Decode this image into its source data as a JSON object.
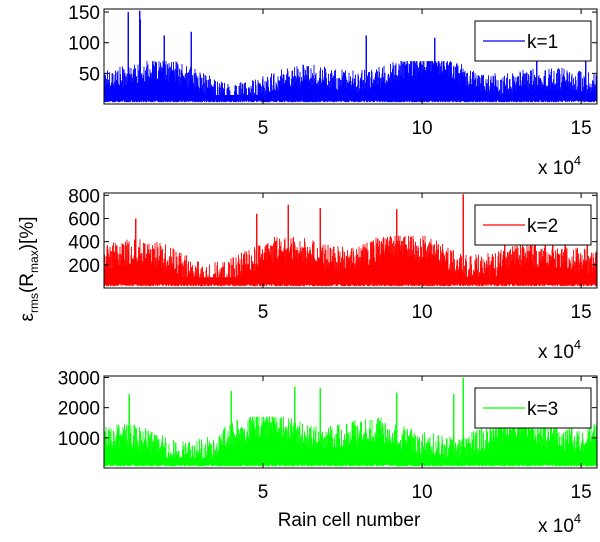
{
  "figure": {
    "ylabel_parts": {
      "epsilon": "ε",
      "rms": "rms",
      "open": "(R",
      "max": "max",
      "close": ")[%]"
    },
    "xlabel": "Rain cell number",
    "x_exponent_base": "x 10",
    "x_exponent_power": "4"
  },
  "chart_data": [
    {
      "type": "line",
      "title": "",
      "xlabel": "",
      "ylabel": "",
      "xlim": [
        0,
        155000
      ],
      "ylim": [
        0,
        155
      ],
      "yticks": [
        50,
        100,
        150
      ],
      "xticks": [
        50000,
        100000,
        150000
      ],
      "xtick_labels": [
        "5",
        "10",
        "15"
      ],
      "ytick_labels": [
        "50",
        "100",
        "150"
      ],
      "x_multiplier_label": "x 10^4",
      "grid": false,
      "legend_position": "top-right",
      "series": [
        {
          "name": "k=1",
          "color": "#0000ff",
          "n_points": 155000,
          "typical_range": [
            5,
            70
          ],
          "peaks": [
            [
              7600,
              150
            ],
            [
              11300,
              152
            ],
            [
              11450,
              138
            ],
            [
              18900,
              112
            ],
            [
              27500,
              118
            ],
            [
              82400,
              112
            ],
            [
              104000,
              108
            ],
            [
              136000,
              110
            ],
            [
              151500,
              118
            ]
          ]
        }
      ]
    },
    {
      "type": "line",
      "title": "",
      "xlabel": "",
      "ylabel": "",
      "xlim": [
        0,
        155000
      ],
      "ylim": [
        0,
        820
      ],
      "yticks": [
        200,
        400,
        600,
        800
      ],
      "xticks": [
        50000,
        100000,
        150000
      ],
      "xtick_labels": [
        "5",
        "10",
        "15"
      ],
      "ytick_labels": [
        "200",
        "400",
        "600",
        "800"
      ],
      "x_multiplier_label": "x 10^4",
      "grid": false,
      "legend_position": "top-right",
      "series": [
        {
          "name": "k=2",
          "color": "#ff0000",
          "n_points": 155000,
          "typical_range": [
            30,
            450
          ],
          "peaks": [
            [
              113000,
              810
            ],
            [
              58000,
              720
            ],
            [
              68000,
              690
            ],
            [
              92000,
              680
            ],
            [
              48000,
              640
            ],
            [
              10000,
              600
            ],
            [
              145000,
              650
            ],
            [
              152000,
              640
            ],
            [
              126000,
              620
            ]
          ]
        }
      ]
    },
    {
      "type": "line",
      "title": "",
      "xlabel": "Rain cell number",
      "ylabel": "",
      "xlim": [
        0,
        155000
      ],
      "ylim": [
        0,
        3050
      ],
      "yticks": [
        1000,
        2000,
        3000
      ],
      "xticks": [
        50000,
        100000,
        150000
      ],
      "xtick_labels": [
        "5",
        "10",
        "15"
      ],
      "ytick_labels": [
        "1000",
        "2000",
        "3000"
      ],
      "x_multiplier_label": "x 10^4",
      "grid": false,
      "legend_position": "top-right",
      "series": [
        {
          "name": "k=3",
          "color": "#00ff00",
          "n_points": 155000,
          "typical_range": [
            100,
            1700
          ],
          "peaks": [
            [
              113000,
              3000
            ],
            [
              60000,
              2700
            ],
            [
              68000,
              2650
            ],
            [
              92000,
              2500
            ],
            [
              40000,
              2550
            ],
            [
              110000,
              2450
            ],
            [
              8000,
              2450
            ],
            [
              147000,
              2300
            ],
            [
              126000,
              2200
            ]
          ]
        }
      ]
    }
  ]
}
